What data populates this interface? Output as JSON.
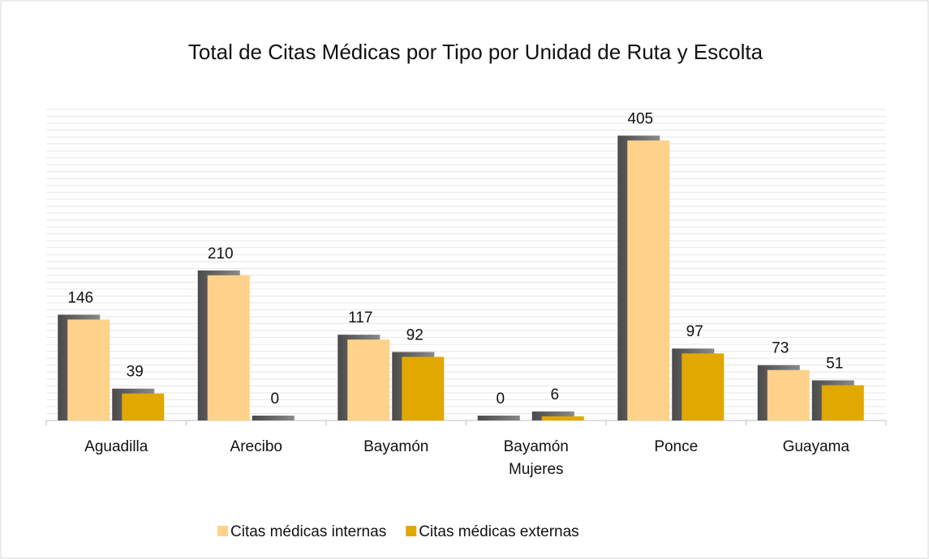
{
  "chart_data": {
    "type": "bar",
    "title": "Total de Citas Médicas por Tipo por Unidad de Ruta y Escolta",
    "categories": [
      "Aguadilla",
      "Arecibo",
      "Bayamón",
      "Bayamón Mujeres",
      "Ponce",
      "Guayama"
    ],
    "series": [
      {
        "name": "Citas médicas internas",
        "color": "#fed28a",
        "values": [
          146,
          210,
          117,
          0,
          405,
          73
        ]
      },
      {
        "name": "Citas médicas externas",
        "color": "#e0a800",
        "values": [
          39,
          0,
          92,
          6,
          97,
          51
        ]
      }
    ],
    "ylim": [
      0,
      450
    ],
    "yticks": [
      0,
      10,
      20,
      30,
      40,
      50,
      60,
      70,
      80,
      90,
      100,
      110,
      120,
      130,
      140,
      150,
      160,
      170,
      180,
      190,
      200,
      210,
      220,
      230,
      240,
      250,
      260,
      270,
      280,
      290,
      300,
      310,
      320,
      330,
      340,
      350,
      360,
      370,
      380,
      390,
      400,
      410,
      420,
      430,
      440,
      450
    ],
    "grid": true,
    "legend": "bottom"
  }
}
